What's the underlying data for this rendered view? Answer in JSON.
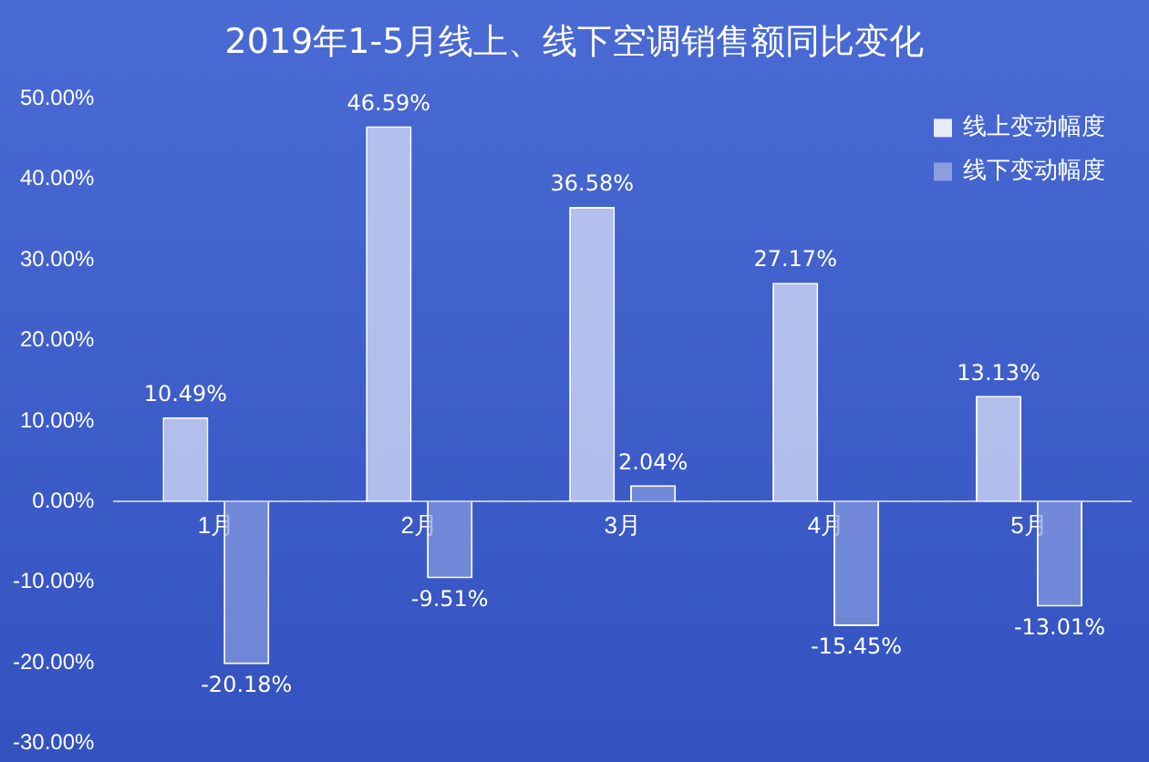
{
  "chart_data": {
    "type": "bar",
    "title": "2019年1-5月线上、线下空调销售额同比变化",
    "categories": [
      "1月",
      "2月",
      "3月",
      "4月",
      "5月"
    ],
    "series": [
      {
        "name": "线上变动幅度",
        "color": "#e6ebfa",
        "values": [
          10.49,
          46.59,
          36.58,
          27.17,
          13.13
        ],
        "value_labels": [
          "10.49%",
          "46.59%",
          "36.58%",
          "27.17%",
          "13.13%"
        ]
      },
      {
        "name": "线下变动幅度",
        "color": "#8a9ee0",
        "values": [
          -20.18,
          -9.51,
          2.04,
          -15.45,
          -13.01
        ],
        "value_labels": [
          "-20.18%",
          "-9.51%",
          "2.04%",
          "-15.45%",
          "-13.01%"
        ]
      }
    ],
    "ylim": [
      -30,
      50
    ],
    "yticks": [
      {
        "value": -30,
        "label": "-30.00%"
      },
      {
        "value": -20,
        "label": "-20.00%"
      },
      {
        "value": -10,
        "label": "-10.00%"
      },
      {
        "value": 0,
        "label": "0.00%"
      },
      {
        "value": 10,
        "label": "10.00%"
      },
      {
        "value": 20,
        "label": "20.00%"
      },
      {
        "value": 30,
        "label": "30.00%"
      },
      {
        "value": 40,
        "label": "40.00%"
      },
      {
        "value": 50,
        "label": "50.00%"
      }
    ],
    "grid": false,
    "legend": "top right"
  }
}
